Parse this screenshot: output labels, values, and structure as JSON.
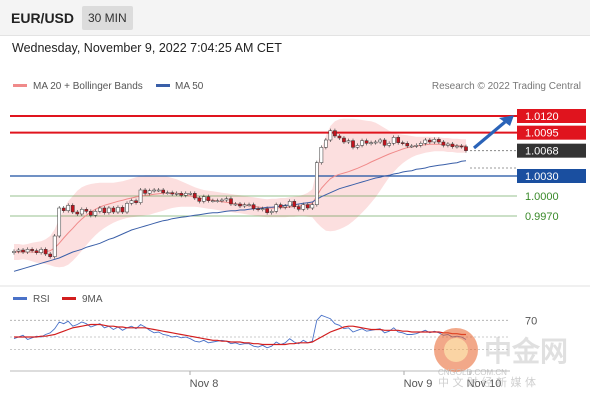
{
  "header": {
    "symbol": "EUR/USD",
    "timeframe": "30 MIN",
    "datetime": "Wednesday, November 9, 2022 7:04:25 AM CET"
  },
  "legend": {
    "ma20_label": "MA 20 + Bollinger Bands",
    "ma50_label": "MA 50",
    "credit": "Research © 2022 Trading Central",
    "rsi_label": "RSI",
    "ma9_label": "9MA"
  },
  "watermark": {
    "brand": "中金网",
    "url": "CNGOLD.COM.CN",
    "tagline": "中 文 财 经 新 媒 体"
  },
  "colors": {
    "resistance": "#e0141e",
    "pivot": "#1a4fa0",
    "support": "#3a8a2a",
    "price_label": "#333333",
    "bull_candle": "#ffffff",
    "bear_candle": "#c0141e",
    "ma20": "#f08a8a",
    "ma50": "#3a5fa8",
    "bollinger_fill": "#fbd9d9",
    "rsi": "#4a72c8",
    "rsi_ma": "#d21e1e",
    "arrow": "#2a63b8"
  },
  "chart_data": {
    "type": "candlestick",
    "ylim": [
      0.988,
      1.015
    ],
    "levels": [
      {
        "value": 1.012,
        "label": "1.0120",
        "kind": "resistance"
      },
      {
        "value": 1.0095,
        "label": "1.0095",
        "kind": "resistance"
      },
      {
        "value": 1.0068,
        "label": "1.0068",
        "kind": "price"
      },
      {
        "value": 1.003,
        "label": "1.0030",
        "kind": "pivot"
      },
      {
        "value": 1.0,
        "label": "1.0000",
        "kind": "support"
      },
      {
        "value": 0.997,
        "label": "0.9970",
        "kind": "support"
      }
    ],
    "x_ticks": [
      "Nov 8",
      "Nov 9",
      "Nov 10"
    ],
    "closes": [
      0.9917,
      0.9919,
      0.9916,
      0.992,
      0.9918,
      0.9915,
      0.992,
      0.9913,
      0.9909,
      0.994,
      0.9982,
      0.9978,
      0.9986,
      0.9976,
      0.9973,
      0.998,
      0.9977,
      0.9971,
      0.9977,
      0.9982,
      0.9975,
      0.9982,
      0.9976,
      0.9983,
      0.9976,
      0.9989,
      0.9993,
      0.999,
      1.0009,
      1.0004,
      1.0008,
      1.0009,
      1.0009,
      1.0005,
      1.0005,
      1.0003,
      1.0004,
      1.0001,
      1.0004,
      1.0004,
      0.9997,
      0.9992,
      0.9999,
      0.9993,
      0.9993,
      0.9993,
      0.9994,
      0.9996,
      0.9988,
      0.9988,
      0.9985,
      0.9987,
      0.9987,
      0.9981,
      0.998,
      0.9981,
      0.9975,
      0.9977,
      0.9987,
      0.9983,
      0.9985,
      0.9992,
      0.9984,
      0.998,
      0.9987,
      0.9982,
      0.9987,
      1.005,
      1.0073,
      1.0084,
      1.0098,
      1.009,
      1.0087,
      1.0081,
      1.0083,
      1.0073,
      1.0076,
      1.0083,
      1.0079,
      1.008,
      1.0081,
      1.0084,
      1.0076,
      1.0079,
      1.0088,
      1.008,
      1.0079,
      1.0075,
      1.0075,
      1.0076,
      1.0079,
      1.0084,
      1.0081,
      1.0085,
      1.0081,
      1.0076,
      1.0078,
      1.0074,
      1.0075,
      1.0074,
      1.0068
    ],
    "bb_upper": [
      0.9928,
      0.9928,
      0.9927,
      0.9928,
      0.993,
      0.9931,
      0.9932,
      0.9935,
      0.994,
      0.995,
      0.9965,
      0.998,
      0.9992,
      1.0,
      1.0008,
      1.0013,
      1.0016,
      1.0018,
      1.0019,
      1.002,
      1.002,
      1.002,
      1.002,
      1.0021,
      1.0022,
      1.0024,
      1.0026,
      1.0028,
      1.003,
      1.0031,
      1.0031,
      1.0031,
      1.0031,
      1.003,
      1.0029,
      1.0027,
      1.0025,
      1.0022,
      1.0019,
      1.0016,
      1.0013,
      1.0011,
      1.0009,
      1.0008,
      1.0007,
      1.0006,
      1.0005,
      1.0004,
      1.0003,
      1.0002,
      1.0001,
      1.0,
      0.9999,
      0.9998,
      0.9997,
      0.9996,
      0.9995,
      0.9996,
      0.9996,
      0.9997,
      0.9997,
      0.9998,
      0.9999,
      1.0,
      1.0002,
      1.0005,
      1.001,
      1.004,
      1.007,
      1.009,
      1.0105,
      1.0112,
      1.0115,
      1.0116,
      1.0116,
      1.0116,
      1.0115,
      1.0114,
      1.0113,
      1.0112,
      1.011,
      1.0106,
      1.0102,
      1.0098,
      1.0095,
      1.0093,
      1.0092,
      1.0091,
      1.009,
      1.0089,
      1.0089,
      1.0089,
      1.0089,
      1.0088,
      1.0088,
      1.0087,
      1.0087,
      1.0086,
      1.0086,
      1.0085,
      1.0085
    ],
    "bb_lower": [
      0.9904,
      0.9904,
      0.9905,
      0.9904,
      0.9902,
      0.99,
      0.9899,
      0.9898,
      0.9896,
      0.9894,
      0.9893,
      0.9894,
      0.9897,
      0.9903,
      0.991,
      0.9918,
      0.9926,
      0.9934,
      0.9941,
      0.9947,
      0.9952,
      0.9956,
      0.996,
      0.9963,
      0.9965,
      0.9967,
      0.9968,
      0.9969,
      0.997,
      0.9971,
      0.9972,
      0.9974,
      0.9976,
      0.9978,
      0.998,
      0.9982,
      0.9983,
      0.9984,
      0.9984,
      0.9984,
      0.9984,
      0.9983,
      0.9982,
      0.9981,
      0.998,
      0.9979,
      0.9978,
      0.9977,
      0.9976,
      0.9975,
      0.9974,
      0.9973,
      0.9972,
      0.9971,
      0.997,
      0.9969,
      0.9968,
      0.9968,
      0.9968,
      0.9968,
      0.9968,
      0.9969,
      0.9969,
      0.997,
      0.997,
      0.9969,
      0.9968,
      0.996,
      0.9953,
      0.9948,
      0.9947,
      0.9948,
      0.995,
      0.9953,
      0.9957,
      0.9962,
      0.9968,
      0.9975,
      0.9982,
      0.999,
      0.9998,
      1.0008,
      1.0018,
      1.0028,
      1.0036,
      1.0043,
      1.0049,
      1.0054,
      1.0058,
      1.0061,
      1.0063,
      1.0065,
      1.0066,
      1.0067,
      1.0067,
      1.0067,
      1.0066,
      1.0066,
      1.0065,
      1.0065,
      1.0065
    ],
    "ma50": [
      0.9887,
      0.9889,
      0.9891,
      0.9893,
      0.9895,
      0.9897,
      0.9899,
      0.9901,
      0.9903,
      0.9905,
      0.9907,
      0.991,
      0.9913,
      0.9916,
      0.9918,
      0.992,
      0.9923,
      0.9925,
      0.9927,
      0.9929,
      0.9932,
      0.9935,
      0.9937,
      0.994,
      0.9943,
      0.9946,
      0.9949,
      0.9951,
      0.9953,
      0.9955,
      0.9957,
      0.9959,
      0.9961,
      0.9963,
      0.9964,
      0.9966,
      0.9967,
      0.9968,
      0.9969,
      0.997,
      0.9971,
      0.9972,
      0.9973,
      0.9974,
      0.9975,
      0.9975,
      0.9976,
      0.9977,
      0.9978,
      0.9978,
      0.9979,
      0.9979,
      0.998,
      0.9981,
      0.9981,
      0.9982,
      0.9983,
      0.9983,
      0.9984,
      0.9985,
      0.9986,
      0.9986,
      0.9987,
      0.9988,
      0.9989,
      0.999,
      0.9991,
      0.9995,
      0.9999,
      1.0002,
      1.0005,
      1.0008,
      1.0011,
      1.0013,
      1.0015,
      1.0017,
      1.0019,
      1.0021,
      1.0023,
      1.0025,
      1.0027,
      1.0028,
      1.003,
      1.0031,
      1.0033,
      1.0034,
      1.0036,
      1.0037,
      1.0038,
      1.004,
      1.0041,
      1.0042,
      1.0044,
      1.0045,
      1.0046,
      1.0047,
      1.0048,
      1.0049,
      1.005,
      1.0052,
      1.0053
    ],
    "rsi_panel": {
      "level": 70,
      "rsi": [
        48,
        50,
        52,
        47,
        49,
        51,
        50,
        53,
        55,
        60,
        68,
        66,
        69,
        63,
        65,
        68,
        66,
        62,
        64,
        66,
        61,
        63,
        59,
        62,
        58,
        61,
        63,
        60,
        65,
        62,
        58,
        55,
        56,
        53,
        52,
        50,
        51,
        49,
        50,
        48,
        45,
        44,
        46,
        43,
        44,
        45,
        46,
        45,
        42,
        43,
        41,
        42,
        42,
        39,
        38,
        40,
        37,
        39,
        44,
        41,
        43,
        48,
        44,
        42,
        46,
        43,
        45,
        70,
        76,
        74,
        72,
        66,
        64,
        60,
        61,
        56,
        58,
        60,
        57,
        58,
        59,
        60,
        55,
        57,
        61,
        56,
        55,
        53,
        53,
        54,
        56,
        58,
        55,
        57,
        55,
        52,
        53,
        50,
        51,
        50,
        47
      ],
      "ma9": [
        50,
        50,
        50,
        50,
        50,
        50,
        51,
        51,
        52,
        53,
        55,
        57,
        59,
        61,
        62,
        63,
        64,
        65,
        65,
        65,
        64,
        63,
        63,
        62,
        62,
        61,
        61,
        61,
        61,
        61,
        60,
        59,
        58,
        57,
        56,
        55,
        54,
        53,
        52,
        51,
        50,
        49,
        48,
        47,
        46,
        46,
        45,
        45,
        44,
        44,
        44,
        43,
        43,
        42,
        42,
        41,
        41,
        41,
        41,
        41,
        41,
        42,
        42,
        43,
        43,
        43,
        44,
        47,
        50,
        53,
        56,
        58,
        60,
        62,
        63,
        63,
        62,
        61,
        60,
        59,
        59,
        59,
        58,
        58,
        58,
        58,
        57,
        57,
        56,
        56,
        56,
        56,
        56,
        56,
        56,
        55,
        55,
        54,
        54,
        53,
        53
      ]
    }
  }
}
